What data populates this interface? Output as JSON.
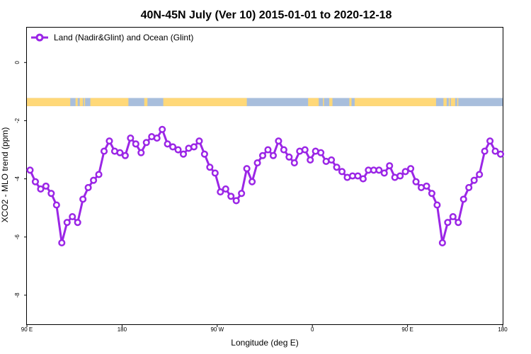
{
  "chart_data": {
    "type": "line",
    "title": "40N-45N July (Ver 10)   2015-01-01 to 2020-12-18",
    "xlabel": "Longitude (deg E)",
    "ylabel": "XCO2 - MLO trend (ppm)",
    "xlim": [
      90,
      540
    ],
    "ylim": [
      -9,
      1.2
    ],
    "x_ticks": [
      {
        "value": 90,
        "label": "90 E"
      },
      {
        "value": 180,
        "label": "180"
      },
      {
        "value": 270,
        "label": "90 W"
      },
      {
        "value": 360,
        "label": "0"
      },
      {
        "value": 450,
        "label": "90 E"
      },
      {
        "value": 540,
        "label": "180"
      }
    ],
    "y_ticks": [
      {
        "value": 0,
        "label": "0"
      },
      {
        "value": -2,
        "label": "-2"
      },
      {
        "value": -4,
        "label": "-4"
      },
      {
        "value": -6,
        "label": "-6"
      },
      {
        "value": -8,
        "label": "-8"
      }
    ],
    "legend": {
      "position": "top-left",
      "entries": [
        "Land (Nadir&Glint) and Ocean (Glint)"
      ]
    },
    "grid": false,
    "colors": {
      "series": "#9b26e6",
      "land": "#ffd878",
      "ocean": "#a8bedc"
    },
    "land_ocean_strip": {
      "y_top": -1.22,
      "y_bottom": -1.5,
      "land_segments": [
        [
          90,
          131
        ],
        [
          136,
          138
        ],
        [
          140,
          143
        ],
        [
          144,
          145
        ],
        [
          150,
          186
        ],
        [
          201,
          204
        ],
        [
          219,
          298
        ],
        [
          356,
          366
        ],
        [
          370,
          371
        ],
        [
          376,
          379
        ],
        [
          395,
          397
        ],
        [
          400,
          477
        ],
        [
          484,
          487
        ],
        [
          489,
          490
        ],
        [
          491,
          495
        ],
        [
          497,
          498
        ]
      ]
    },
    "series": [
      {
        "name": "Land (Nadir&Glint) and Ocean (Glint)",
        "x": [
          93,
          98,
          103,
          108,
          113,
          118,
          123,
          128,
          133,
          138,
          143,
          148,
          153,
          158,
          163,
          168,
          173,
          178,
          183,
          188,
          193,
          198,
          203,
          208,
          213,
          218,
          223,
          228,
          233,
          238,
          243,
          248,
          253,
          258,
          263,
          268,
          273,
          278,
          283,
          288,
          293,
          298,
          303,
          308,
          313,
          318,
          323,
          328,
          333,
          338,
          343,
          348,
          353,
          358,
          363,
          368,
          373,
          378,
          383,
          388,
          393,
          398,
          403,
          408,
          413,
          418,
          423,
          428,
          433,
          438,
          443,
          448,
          453,
          458,
          463,
          468,
          473,
          478,
          483,
          488,
          493,
          498,
          503,
          508,
          513,
          518,
          523,
          528,
          533,
          538
        ],
        "y": [
          -3.7,
          -4.1,
          -4.35,
          -4.25,
          -4.5,
          -4.9,
          -6.2,
          -5.5,
          -5.3,
          -5.5,
          -4.7,
          -4.3,
          -4.05,
          -3.85,
          -3.05,
          -2.7,
          -3.05,
          -3.1,
          -3.2,
          -2.6,
          -2.8,
          -3.1,
          -2.75,
          -2.55,
          -2.6,
          -2.3,
          -2.8,
          -2.9,
          -3.0,
          -3.15,
          -2.95,
          -2.9,
          -2.7,
          -3.15,
          -3.6,
          -3.8,
          -4.45,
          -4.35,
          -4.6,
          -4.75,
          -4.5,
          -3.65,
          -4.1,
          -3.45,
          -3.2,
          -3.0,
          -3.2,
          -2.7,
          -3.0,
          -3.25,
          -3.45,
          -3.05,
          -3.0,
          -3.35,
          -3.05,
          -3.1,
          -3.4,
          -3.35,
          -3.6,
          -3.75,
          -3.95,
          -3.9,
          -3.9,
          -4.0,
          -3.7,
          -3.7,
          -3.7,
          -3.8,
          -3.55,
          -3.95,
          -3.9,
          -3.75,
          -3.65,
          -4.1,
          -4.3,
          -4.25,
          -4.5,
          -4.9,
          -6.2,
          -5.5,
          -5.3,
          -5.5,
          -4.7,
          -4.3,
          -4.05,
          -3.85,
          -3.05,
          -2.7,
          -3.05,
          -3.15
        ]
      }
    ]
  }
}
